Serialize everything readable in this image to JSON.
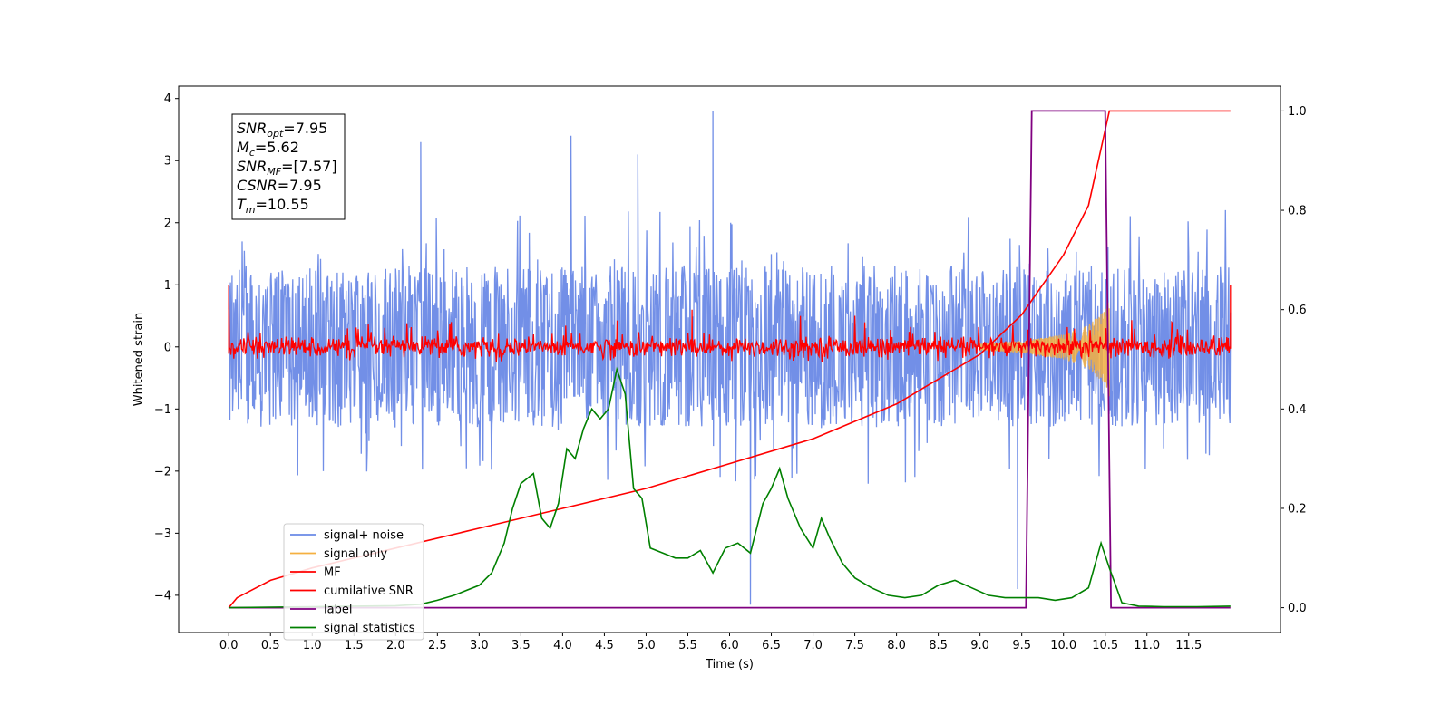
{
  "chart_data": {
    "type": "line",
    "xlabel": "Time (s)",
    "ylabel_left": "Whitened strain",
    "ylabel_right": "",
    "xlim": [
      -0.6,
      12.6
    ],
    "ylim_left": [
      -4.6,
      4.2
    ],
    "ylim_right": [
      -0.05,
      1.05
    ],
    "x_ticks": [
      "0.0",
      "0.5",
      "1.0",
      "1.5",
      "2.0",
      "2.5",
      "3.0",
      "3.5",
      "4.0",
      "4.5",
      "5.0",
      "5.5",
      "6.0",
      "6.5",
      "7.0",
      "7.5",
      "8.0",
      "8.5",
      "9.0",
      "9.5",
      "10.0",
      "10.5",
      "11.0",
      "11.5"
    ],
    "y_ticks_left": [
      "4",
      "3",
      "2",
      "1",
      "0",
      "−1",
      "−2",
      "−3",
      "−4"
    ],
    "y_ticks_right": [
      "1.0",
      "0.8",
      "0.6",
      "0.4",
      "0.2",
      "0.0"
    ],
    "info_box": [
      {
        "sym": "SNR",
        "sub": "opt",
        "value": "=7.95"
      },
      {
        "sym": "M",
        "sub": "c",
        "value": "=5.62"
      },
      {
        "sym": "SNR",
        "sub": "MF",
        "value": "=[7.57]"
      },
      {
        "sym": "CSNR",
        "sub": "",
        "value": "=7.95"
      },
      {
        "sym": "T",
        "sub": "m",
        "value": "=10.55"
      }
    ],
    "legend": [
      "signal+ noise",
      "signal only",
      "MF",
      "cumilative SNR",
      "label",
      "signal statistics"
    ],
    "legend_location": "lower-left",
    "colors": {
      "signal_noise": "#6a89e6",
      "signal_only": "#f5b041",
      "mf": "#ff0000",
      "cumulative_snr": "#ff0000",
      "label": "#800080",
      "signal_statistics": "#008000"
    },
    "series": [
      {
        "name": "signal+ noise",
        "axis": "left",
        "description_range": [
          -1.6,
          1.7
        ],
        "x_range": [
          0.0,
          12.0
        ],
        "peaks": [
          [
            5.8,
            3.8
          ],
          [
            4.1,
            3.4
          ],
          [
            2.3,
            3.3
          ],
          [
            6.25,
            -4.15
          ],
          [
            9.45,
            -3.9
          ],
          [
            4.9,
            3.1
          ]
        ]
      },
      {
        "name": "signal only",
        "axis": "left",
        "x": [
          9.0,
          9.5,
          10.0,
          10.3,
          10.5,
          10.55
        ],
        "amplitude": [
          0.05,
          0.1,
          0.2,
          0.35,
          0.6,
          0.8
        ]
      },
      {
        "name": "MF",
        "axis": "left",
        "x_range": [
          0.0,
          12.0
        ],
        "noise_level": 0.12,
        "spikes": [
          [
            0.0,
            1.0
          ],
          [
            12.0,
            1.0
          ],
          [
            5.55,
            0.6
          ]
        ]
      },
      {
        "name": "cumilative SNR",
        "axis": "right",
        "x": [
          0.0,
          0.1,
          0.5,
          1.0,
          2.0,
          3.0,
          4.0,
          5.0,
          6.0,
          7.0,
          8.0,
          8.5,
          9.0,
          9.5,
          10.0,
          10.3,
          10.55,
          10.6,
          12.0
        ],
        "y": [
          0.0,
          0.02,
          0.055,
          0.08,
          0.12,
          0.16,
          0.2,
          0.24,
          0.29,
          0.34,
          0.41,
          0.46,
          0.51,
          0.59,
          0.71,
          0.81,
          1.0,
          1.0,
          1.0
        ]
      },
      {
        "name": "label",
        "axis": "right",
        "x": [
          0.0,
          9.55,
          9.62,
          10.5,
          10.57,
          12.0
        ],
        "y": [
          0.0,
          0.0,
          1.0,
          1.0,
          0.0,
          0.0
        ]
      },
      {
        "name": "signal statistics",
        "axis": "right",
        "x": [
          0.0,
          0.5,
          1.0,
          1.5,
          2.0,
          2.3,
          2.5,
          2.7,
          3.0,
          3.15,
          3.3,
          3.4,
          3.5,
          3.65,
          3.75,
          3.85,
          3.95,
          4.05,
          4.15,
          4.25,
          4.35,
          4.45,
          4.55,
          4.65,
          4.75,
          4.85,
          4.95,
          5.05,
          5.2,
          5.35,
          5.5,
          5.65,
          5.8,
          5.95,
          6.1,
          6.25,
          6.4,
          6.5,
          6.6,
          6.7,
          6.85,
          7.0,
          7.1,
          7.2,
          7.35,
          7.5,
          7.7,
          7.9,
          8.1,
          8.3,
          8.5,
          8.7,
          8.9,
          9.1,
          9.3,
          9.5,
          9.7,
          9.9,
          10.1,
          10.3,
          10.45,
          10.55,
          10.7,
          10.9,
          11.2,
          11.6,
          12.0
        ],
        "y": [
          0.0,
          0.001,
          0.002,
          0.003,
          0.004,
          0.007,
          0.015,
          0.025,
          0.045,
          0.07,
          0.13,
          0.2,
          0.25,
          0.27,
          0.18,
          0.16,
          0.21,
          0.32,
          0.3,
          0.36,
          0.4,
          0.38,
          0.4,
          0.48,
          0.43,
          0.24,
          0.22,
          0.12,
          0.11,
          0.1,
          0.1,
          0.115,
          0.07,
          0.12,
          0.13,
          0.11,
          0.21,
          0.24,
          0.28,
          0.22,
          0.16,
          0.12,
          0.18,
          0.14,
          0.09,
          0.06,
          0.04,
          0.025,
          0.02,
          0.025,
          0.045,
          0.055,
          0.04,
          0.025,
          0.02,
          0.02,
          0.02,
          0.015,
          0.02,
          0.04,
          0.13,
          0.08,
          0.01,
          0.003,
          0.002,
          0.002,
          0.003
        ]
      }
    ]
  }
}
